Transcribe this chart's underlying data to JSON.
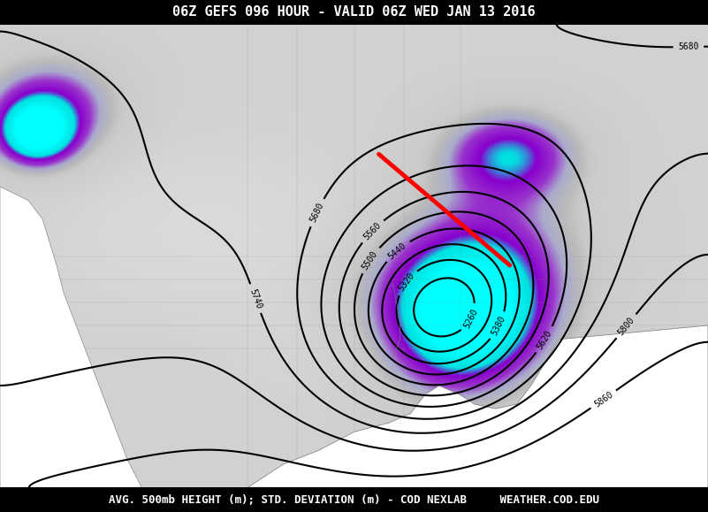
{
  "title": "06Z GEFS 096 HOUR - VALID 06Z WED JAN 13 2016",
  "footer": "AVG. 500mb HEIGHT (m); STD. DEVIATION (m) - COD NEXLAB     WEATHER.COD.EDU",
  "title_bg": "#000000",
  "title_color": "#ffffff",
  "footer_bg": "#000000",
  "footer_color": "#ffffff",
  "bg_color": "#c8c8c8",
  "map_bg": "#e8e8e8",
  "red_line": [
    [
      0.535,
      0.72
    ],
    [
      0.72,
      0.48
    ]
  ],
  "contour_color": "#000000",
  "contour_linewidth": 1.5,
  "figsize": [
    8.01,
    5.79
  ],
  "dpi": 100
}
